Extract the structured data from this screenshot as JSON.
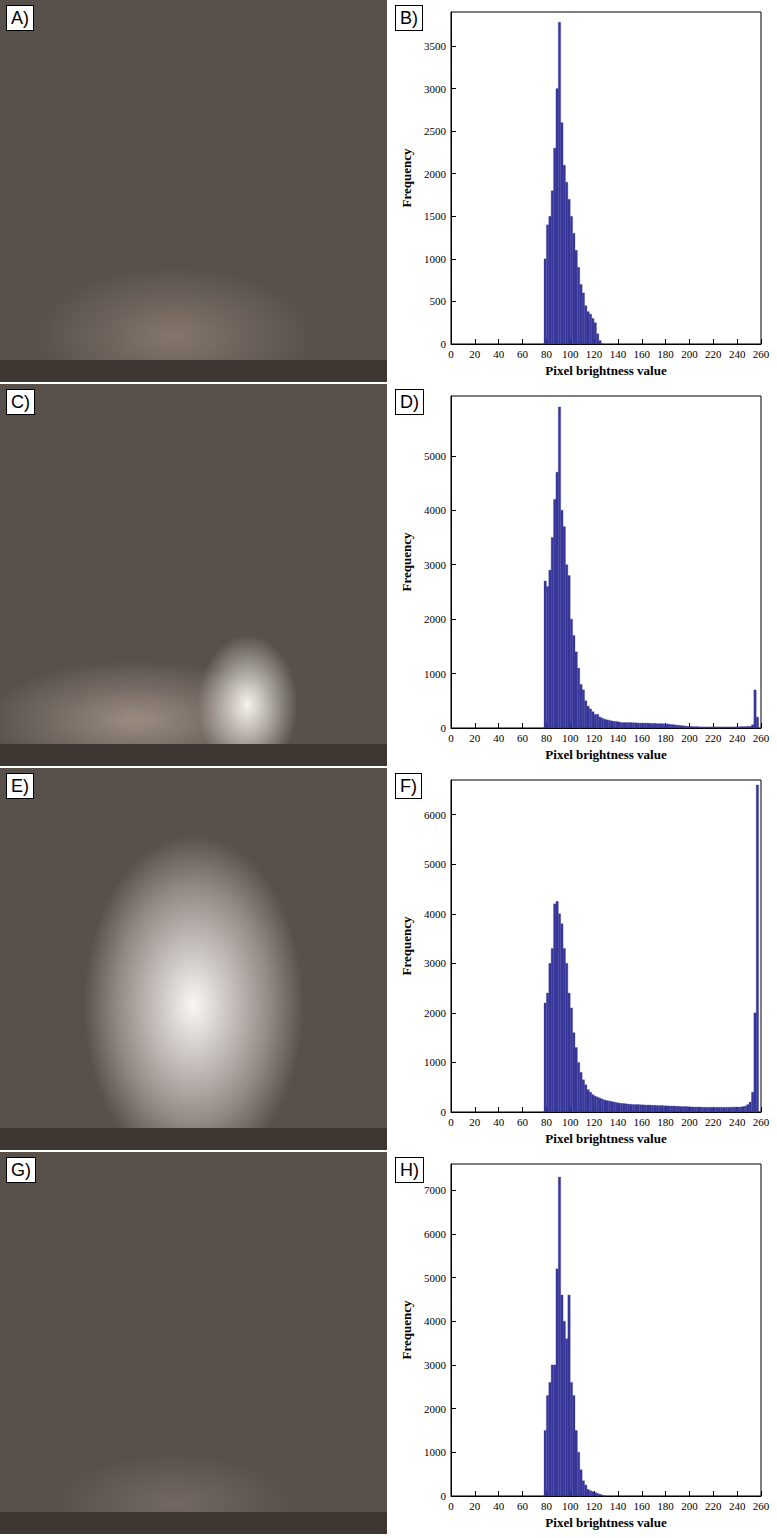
{
  "images": [
    {
      "label": "A)"
    },
    {
      "label": "C)"
    },
    {
      "label": "E)"
    },
    {
      "label": "G)"
    }
  ],
  "chart_data": [
    {
      "type": "histogram",
      "label": "B)",
      "x_label": "Pixel brightness value",
      "y_label": "Frequency",
      "color": "#37379a",
      "grid": false,
      "bins": [
        76,
        78,
        80,
        82,
        84,
        86,
        88,
        90,
        92,
        94,
        96,
        98,
        100,
        102,
        104,
        106,
        108,
        110,
        112,
        114,
        116,
        118,
        120,
        122,
        124,
        126,
        128
      ],
      "counts": [
        0,
        1000,
        1400,
        1500,
        1800,
        2300,
        3000,
        3780,
        2600,
        2100,
        1900,
        1700,
        1500,
        1300,
        1100,
        900,
        700,
        600,
        450,
        380,
        350,
        300,
        250,
        120,
        40,
        0
      ],
      "xlim": [
        0,
        260
      ],
      "xticks": [
        0,
        20,
        40,
        60,
        80,
        100,
        120,
        140,
        160,
        180,
        200,
        220,
        240,
        260
      ],
      "ylim": [
        0,
        3900
      ],
      "yticks": [
        0,
        500,
        1000,
        1500,
        2000,
        2500,
        3000,
        3500
      ]
    },
    {
      "type": "histogram",
      "label": "D)",
      "x_label": "Pixel brightness value",
      "y_label": "Frequency",
      "color": "#37379a",
      "grid": false,
      "bins": [
        76,
        78,
        80,
        82,
        84,
        86,
        88,
        90,
        92,
        94,
        96,
        98,
        100,
        102,
        104,
        106,
        108,
        110,
        112,
        114,
        116,
        118,
        120,
        122,
        124,
        126,
        128,
        130,
        132,
        134,
        136,
        138,
        140,
        142,
        144,
        146,
        148,
        150,
        152,
        154,
        156,
        158,
        160,
        162,
        164,
        166,
        168,
        170,
        172,
        174,
        176,
        178,
        180,
        182,
        184,
        186,
        188,
        190,
        192,
        194,
        196,
        198,
        200,
        202,
        204,
        206,
        208,
        210,
        212,
        214,
        216,
        218,
        220,
        222,
        224,
        226,
        228,
        230,
        232,
        234,
        236,
        238,
        240,
        242,
        244,
        246,
        248,
        250,
        252,
        254,
        256,
        258
      ],
      "counts": [
        0,
        2700,
        2600,
        2900,
        3500,
        4200,
        4700,
        5900,
        4000,
        3700,
        3000,
        2800,
        2000,
        1700,
        1400,
        1100,
        800,
        700,
        500,
        400,
        350,
        300,
        250,
        250,
        200,
        180,
        160,
        150,
        140,
        130,
        120,
        120,
        110,
        100,
        100,
        100,
        100,
        100,
        95,
        95,
        90,
        90,
        90,
        90,
        90,
        85,
        85,
        85,
        80,
        80,
        80,
        75,
        75,
        70,
        65,
        60,
        55,
        50,
        45,
        40,
        35,
        30,
        30,
        25,
        25,
        25,
        20,
        20,
        20,
        20,
        20,
        20,
        20,
        20,
        20,
        20,
        20,
        20,
        20,
        20,
        20,
        20,
        20,
        25,
        25,
        25,
        30,
        30,
        60,
        700,
        200
      ],
      "xlim": [
        0,
        260
      ],
      "xticks": [
        0,
        20,
        40,
        60,
        80,
        100,
        120,
        140,
        160,
        180,
        200,
        220,
        240,
        260
      ],
      "ylim": [
        0,
        6100
      ],
      "yticks": [
        0,
        1000,
        2000,
        3000,
        4000,
        5000
      ]
    },
    {
      "type": "histogram",
      "label": "F)",
      "x_label": "Pixel brightness value",
      "y_label": "Frequency",
      "color": "#37379a",
      "grid": false,
      "bins": [
        76,
        78,
        80,
        82,
        84,
        86,
        88,
        90,
        92,
        94,
        96,
        98,
        100,
        102,
        104,
        106,
        108,
        110,
        112,
        114,
        116,
        118,
        120,
        122,
        124,
        126,
        128,
        130,
        132,
        134,
        136,
        138,
        140,
        142,
        144,
        146,
        148,
        150,
        152,
        154,
        156,
        158,
        160,
        162,
        164,
        166,
        168,
        170,
        172,
        174,
        176,
        178,
        180,
        182,
        184,
        186,
        188,
        190,
        192,
        194,
        196,
        198,
        200,
        202,
        204,
        206,
        208,
        210,
        212,
        214,
        216,
        218,
        220,
        222,
        224,
        226,
        228,
        230,
        232,
        234,
        236,
        238,
        240,
        242,
        244,
        246,
        248,
        250,
        252,
        254,
        256,
        258
      ],
      "counts": [
        0,
        2200,
        2400,
        3000,
        3300,
        4200,
        4250,
        4000,
        3800,
        3300,
        3000,
        2400,
        2100,
        1600,
        1300,
        1000,
        800,
        650,
        550,
        450,
        400,
        350,
        320,
        300,
        280,
        260,
        240,
        230,
        220,
        210,
        200,
        190,
        180,
        175,
        170,
        165,
        160,
        155,
        150,
        150,
        150,
        145,
        145,
        140,
        140,
        140,
        135,
        135,
        130,
        130,
        130,
        125,
        125,
        120,
        120,
        120,
        115,
        115,
        110,
        110,
        110,
        105,
        105,
        100,
        100,
        100,
        100,
        95,
        95,
        95,
        95,
        95,
        95,
        95,
        95,
        95,
        95,
        95,
        95,
        95,
        100,
        100,
        100,
        100,
        110,
        120,
        150,
        200,
        400,
        2000,
        6600
      ],
      "xlim": [
        0,
        260
      ],
      "xticks": [
        0,
        20,
        40,
        60,
        80,
        100,
        120,
        140,
        160,
        180,
        200,
        220,
        240,
        260
      ],
      "ylim": [
        0,
        6700
      ],
      "yticks": [
        0,
        1000,
        2000,
        3000,
        4000,
        5000,
        6000
      ]
    },
    {
      "type": "histogram",
      "label": "H)",
      "x_label": "Pixel brightness value",
      "y_label": "Frequency",
      "color": "#37379a",
      "grid": false,
      "bins": [
        76,
        78,
        80,
        82,
        84,
        86,
        88,
        90,
        92,
        94,
        96,
        98,
        100,
        102,
        104,
        106,
        108,
        110,
        112,
        114,
        116,
        118,
        120,
        122,
        124,
        126,
        128,
        130
      ],
      "counts": [
        0,
        1500,
        2300,
        2600,
        3000,
        3000,
        5200,
        7300,
        4600,
        4000,
        3600,
        4600,
        2600,
        2300,
        1500,
        1000,
        600,
        350,
        250,
        150,
        120,
        100,
        80,
        60,
        40,
        20,
        0
      ],
      "xlim": [
        0,
        260
      ],
      "xticks": [
        0,
        20,
        40,
        60,
        80,
        100,
        120,
        140,
        160,
        180,
        200,
        220,
        240,
        260
      ],
      "ylim": [
        0,
        7600
      ],
      "yticks": [
        0,
        1000,
        2000,
        3000,
        4000,
        5000,
        6000,
        7000
      ]
    }
  ]
}
